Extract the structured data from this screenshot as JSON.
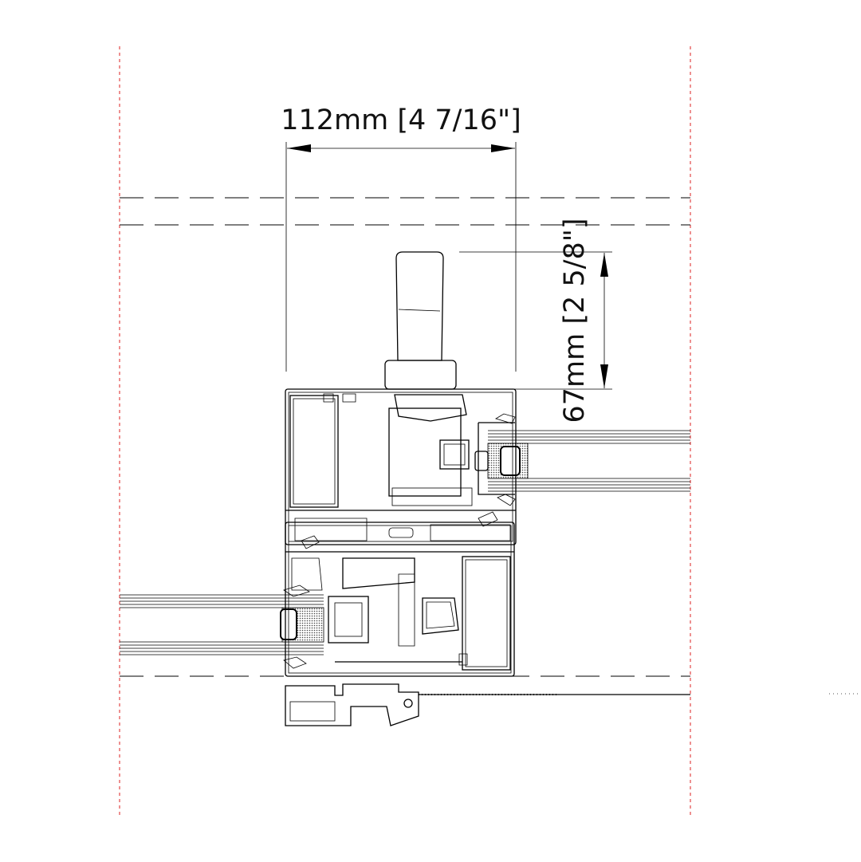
{
  "dimensions": {
    "width": {
      "label": "112mm [4 7/16\"]"
    },
    "height": {
      "label": "67mm [2 5/8\"]"
    }
  }
}
